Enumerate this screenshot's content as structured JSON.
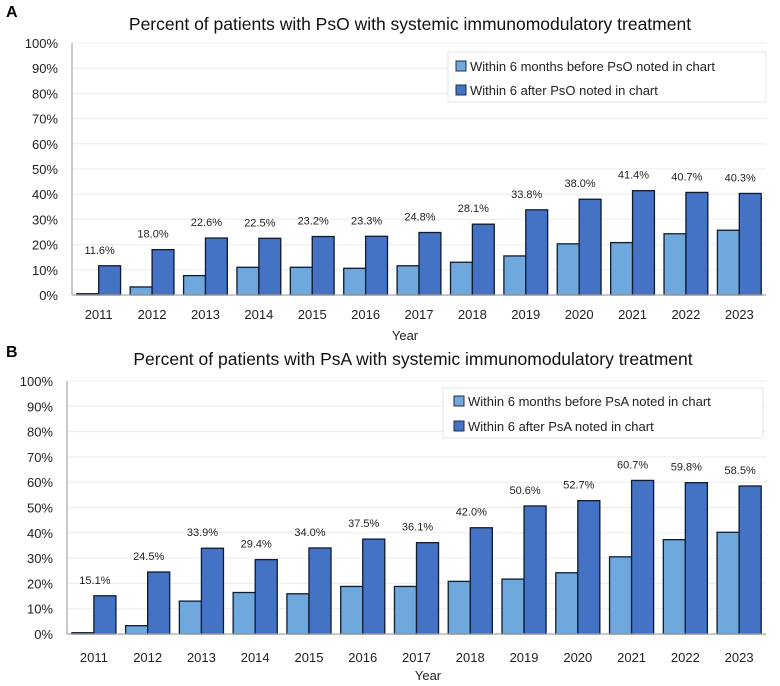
{
  "chart_data": [
    {
      "panel": "A",
      "type": "bar",
      "title": "Percent of patients with PsO with systemic immunomodulatory treatment",
      "xlabel": "Year",
      "ylabel": "",
      "ylim": [
        0,
        100
      ],
      "yticks": [
        "0%",
        "10%",
        "20%",
        "30%",
        "40%",
        "50%",
        "60%",
        "70%",
        "80%",
        "90%",
        "100%"
      ],
      "grid": true,
      "legend_position": "top-right",
      "categories": [
        "2011",
        "2012",
        "2013",
        "2014",
        "2015",
        "2016",
        "2017",
        "2018",
        "2019",
        "2020",
        "2021",
        "2022",
        "2023"
      ],
      "series": [
        {
          "name": "Within 6 months before PsO noted in chart",
          "color": "#6fa8dc",
          "values": [
            0.5,
            3.2,
            7.7,
            11.0,
            11.0,
            10.6,
            11.6,
            13.0,
            15.5,
            20.3,
            20.8,
            24.3,
            25.7
          ],
          "labels": null
        },
        {
          "name": "Within 6 after PsO noted in chart",
          "color": "#4472c4",
          "values": [
            11.6,
            18.0,
            22.6,
            22.5,
            23.2,
            23.3,
            24.8,
            28.1,
            33.8,
            38.0,
            41.4,
            40.7,
            40.3
          ],
          "labels": [
            "11.6%",
            "18.0%",
            "22.6%",
            "22.5%",
            "23.2%",
            "23.3%",
            "24.8%",
            "28.1%",
            "33.8%",
            "38.0%",
            "41.4%",
            "40.7%",
            "40.3%"
          ]
        }
      ]
    },
    {
      "panel": "B",
      "type": "bar",
      "title": "Percent of patients with PsA with systemic immunomodulatory treatment",
      "xlabel": "Year",
      "ylabel": "",
      "ylim": [
        0,
        100
      ],
      "yticks": [
        "0%",
        "10%",
        "20%",
        "30%",
        "40%",
        "50%",
        "60%",
        "70%",
        "80%",
        "90%",
        "100%"
      ],
      "grid": true,
      "legend_position": "top-right",
      "categories": [
        "2011",
        "2012",
        "2013",
        "2014",
        "2015",
        "2016",
        "2017",
        "2018",
        "2019",
        "2020",
        "2021",
        "2022",
        "2023"
      ],
      "series": [
        {
          "name": "Within 6 months before PsA noted in chart",
          "color": "#6fa8dc",
          "values": [
            0.5,
            3.3,
            13.0,
            16.4,
            15.9,
            18.8,
            18.8,
            20.8,
            21.7,
            24.2,
            30.5,
            37.3,
            40.2
          ],
          "labels": null
        },
        {
          "name": "Within 6 after PsA noted in chart",
          "color": "#4472c4",
          "values": [
            15.1,
            24.5,
            33.9,
            29.4,
            34.0,
            37.5,
            36.1,
            42.0,
            50.6,
            52.7,
            60.7,
            59.8,
            58.5
          ],
          "labels": [
            "15.1%",
            "24.5%",
            "33.9%",
            "29.4%",
            "34.0%",
            "37.5%",
            "36.1%",
            "42.0%",
            "50.6%",
            "52.7%",
            "60.7%",
            "59.8%",
            "58.5%"
          ]
        }
      ]
    }
  ]
}
